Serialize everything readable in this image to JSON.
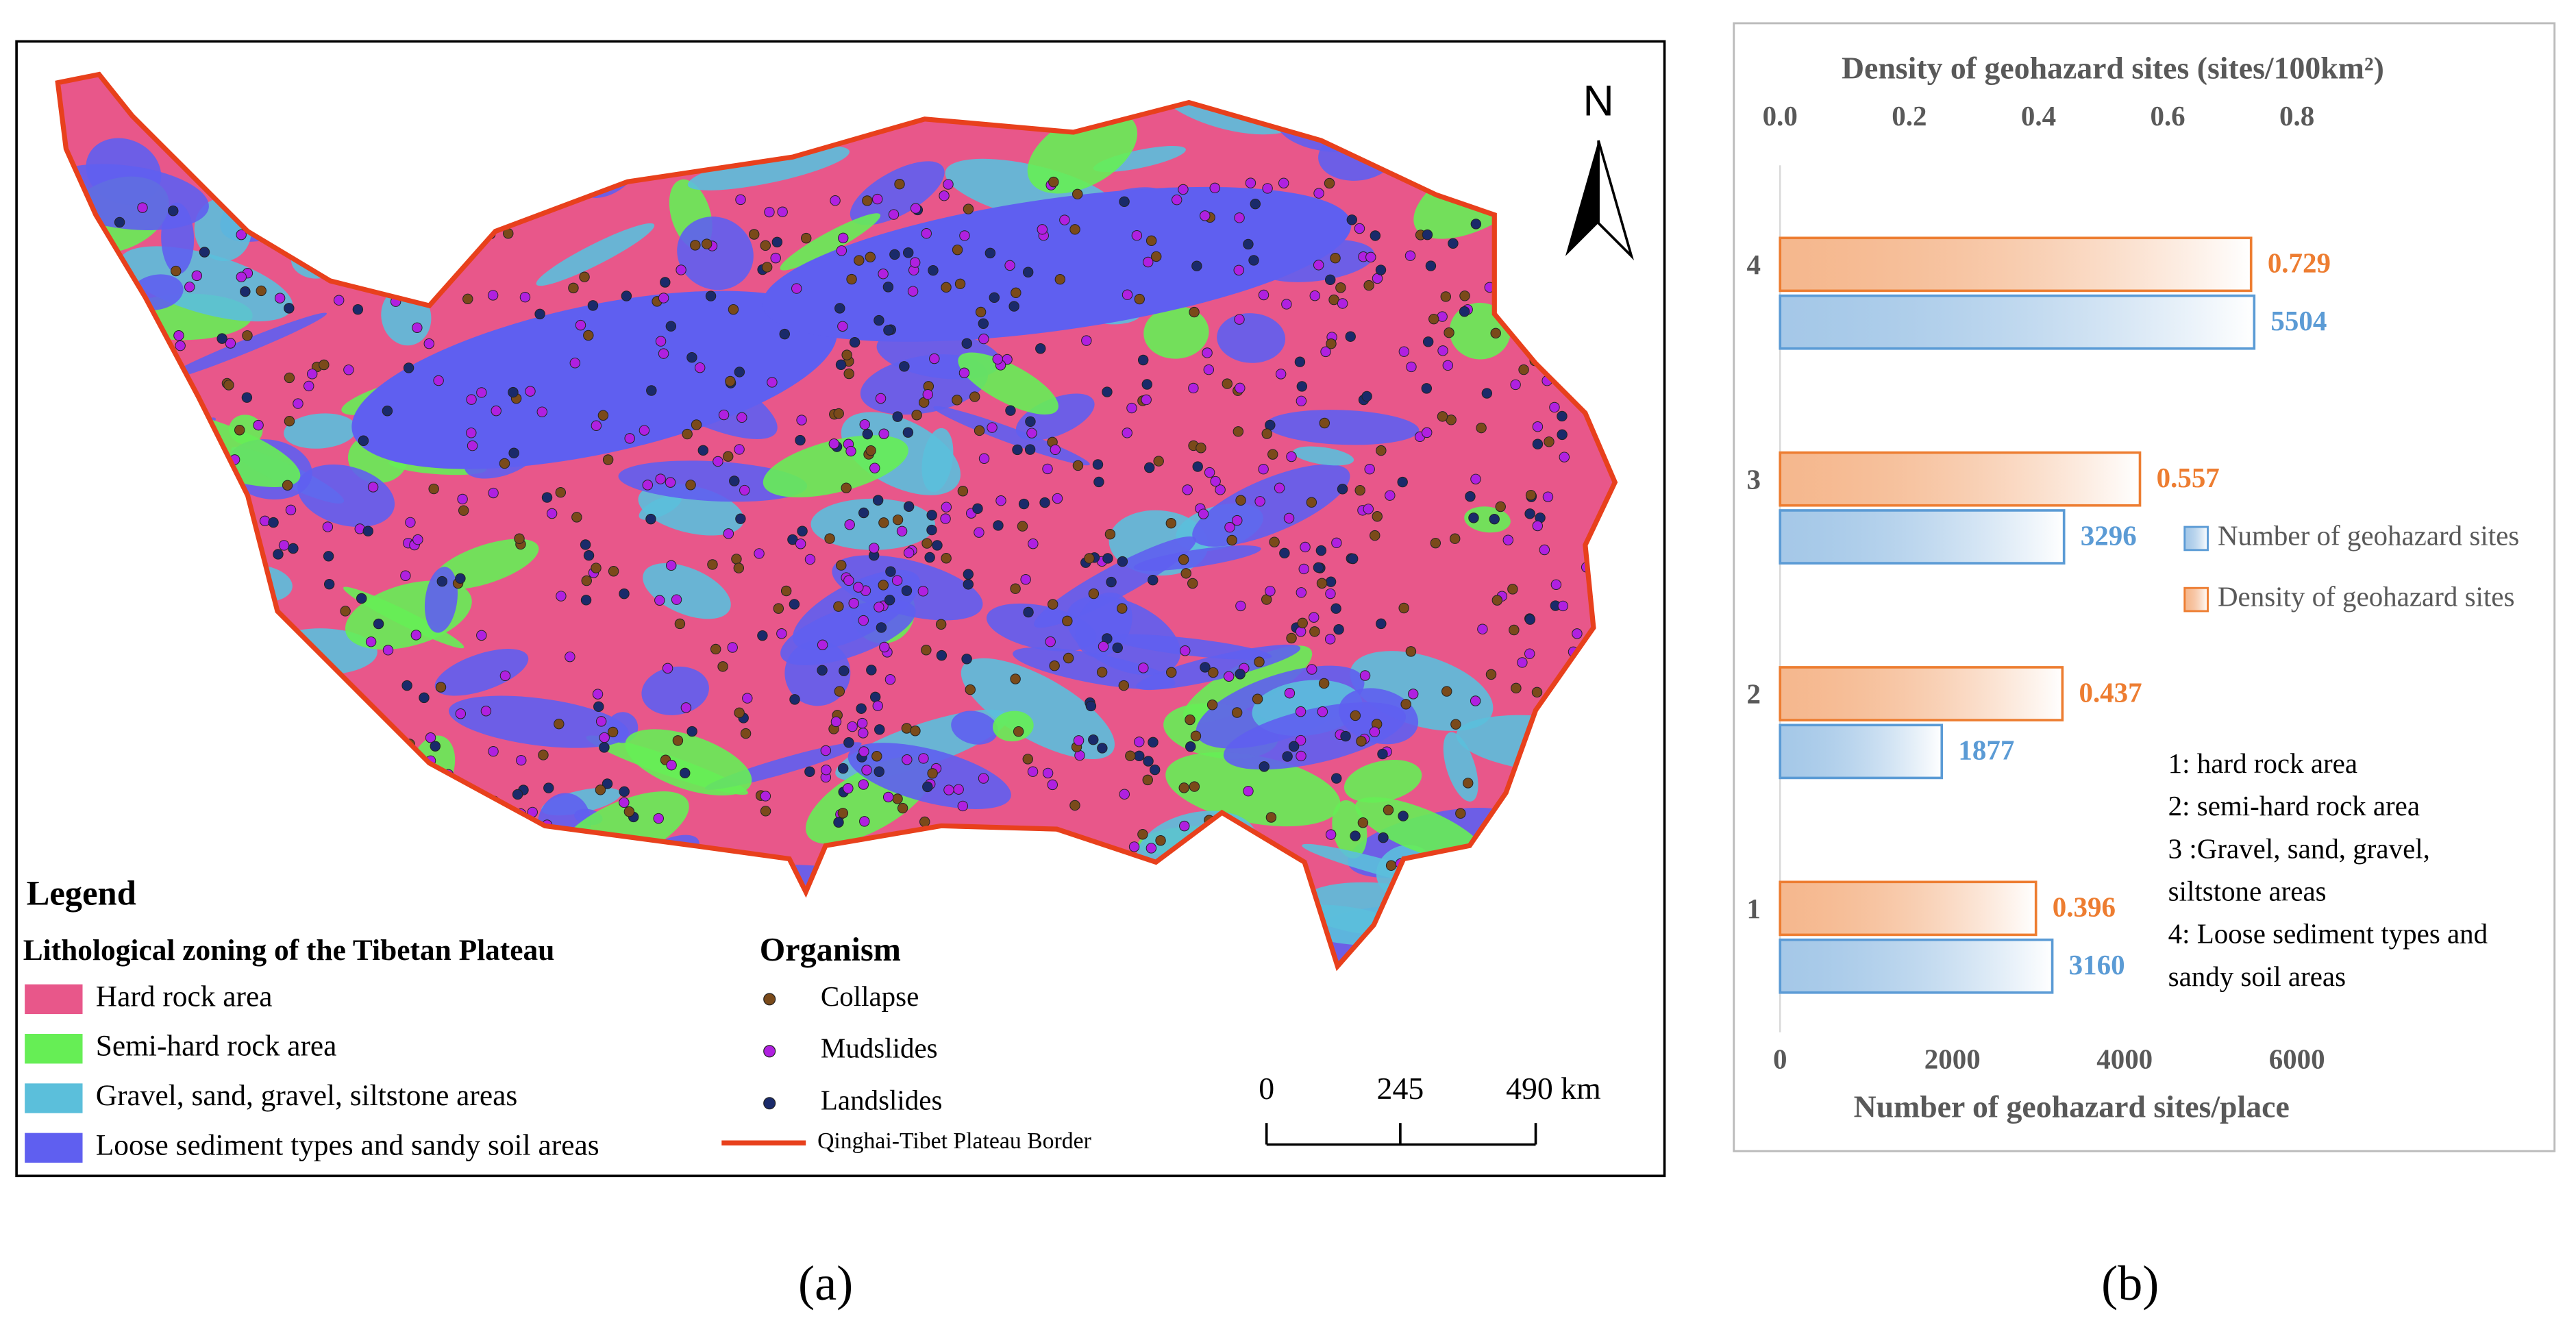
{
  "map": {
    "north": "N",
    "legend_title": "Legend",
    "zoning_title": "Lithological zoning of the Tibetan Plateau",
    "zones": [
      {
        "name": "Hard rock area",
        "color": "#e8578a"
      },
      {
        "name": "Semi-hard rock area",
        "color": "#66ee55"
      },
      {
        "name": "Gravel, sand, gravel, siltstone areas",
        "color": "#5bbfdb"
      },
      {
        "name": "Loose sediment types and sandy soil areas",
        "color": "#5f5ff0"
      }
    ],
    "organism_title": "Organism",
    "organisms": [
      {
        "name": "Collapse",
        "color": "#7a4a1a"
      },
      {
        "name": "Mudslides",
        "color": "#b020e0"
      },
      {
        "name": "Landslides",
        "color": "#1a2a6a"
      }
    ],
    "border": {
      "name": "Qinghai-Tibet Plateau Border",
      "color": "#e8401c"
    },
    "scale_labels": [
      "0",
      "245",
      "490 km"
    ]
  },
  "panels": [
    "(a)",
    "(b)"
  ],
  "chart_data": {
    "type": "hbar",
    "categories": [
      "1",
      "2",
      "3",
      "4"
    ],
    "series": [
      {
        "name": "Number of geohazard sites",
        "color": "#5b9bd5",
        "axis": "x",
        "values": [
          3160,
          1877,
          3296,
          5504
        ]
      },
      {
        "name": "Density of geohazard sites",
        "color": "#ed7d31",
        "axis": "x2",
        "values": [
          0.396,
          0.437,
          0.557,
          0.729
        ]
      }
    ],
    "xlabel": "Number of geohazard sites/place",
    "x2label": "Density of geohazard sites (sites/100km²)",
    "xlim": [
      0,
      6000
    ],
    "xticks": [
      0,
      2000,
      4000,
      6000
    ],
    "x2lim": [
      0,
      0.8
    ],
    "x2ticks": [
      {
        "value": 0,
        "label": "0.0"
      },
      0.2,
      0.4,
      0.6,
      0.8
    ],
    "annotations": [
      "1: hard rock area",
      "2: semi-hard rock area",
      "3 :Gravel, sand, gravel,",
      "siltstone areas",
      "4: Loose sediment types and",
      "sandy soil areas"
    ]
  }
}
